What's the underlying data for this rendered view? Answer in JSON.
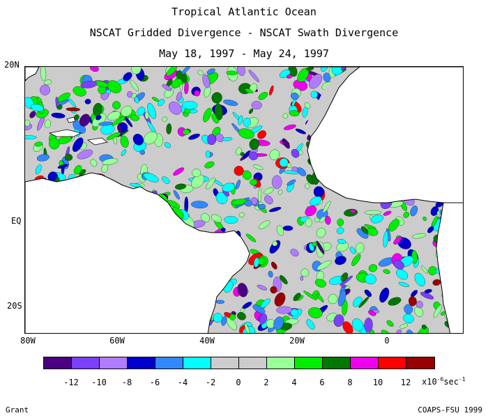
{
  "titles": {
    "line1": "Tropical Atlantic Ocean",
    "line2": "NSCAT Gridded Divergence - NSCAT Swath Divergence",
    "line3": "May 18, 1997 - May 24, 1997"
  },
  "axes": {
    "lat_labels": [
      "20N",
      "EQ",
      "20S"
    ],
    "lon_labels": [
      "80W",
      "60W",
      "40W",
      "20W",
      "0"
    ]
  },
  "colorbar": {
    "colors": [
      "#4b0082",
      "#7b3fff",
      "#b07cff",
      "#0000cc",
      "#3388ff",
      "#00ffff",
      "#cccccc",
      "#cccccc",
      "#99ff99",
      "#00ee00",
      "#007700",
      "#ee00ee",
      "#ff0000",
      "#990000"
    ],
    "tick_labels": [
      "-12",
      "-10",
      "-8",
      "-6",
      "-4",
      "-2",
      "0",
      "2",
      "4",
      "6",
      "8",
      "10",
      "12"
    ],
    "units_text": "x10",
    "units_exp": "-6",
    "units_tail": "sec",
    "units_tail_exp": "-1"
  },
  "credits": {
    "left": "Grant",
    "right": "COAPS-FSU 1999"
  }
}
